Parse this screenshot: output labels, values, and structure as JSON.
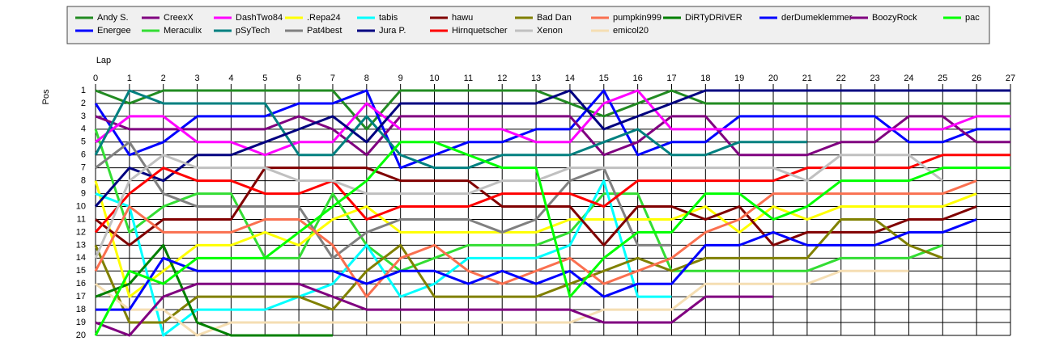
{
  "chart_data": {
    "type": "line",
    "x_label": "Lap",
    "y_label": "Pos",
    "x": [
      0,
      1,
      2,
      3,
      4,
      5,
      6,
      7,
      8,
      9,
      10,
      11,
      12,
      13,
      14,
      15,
      16,
      17,
      18,
      19,
      20,
      21,
      22,
      23,
      24,
      25,
      26,
      27
    ],
    "xlim": [
      0,
      27
    ],
    "xticks": [
      0,
      1,
      2,
      3,
      4,
      5,
      6,
      7,
      8,
      9,
      10,
      11,
      12,
      13,
      14,
      15,
      16,
      17,
      18,
      19,
      20,
      21,
      22,
      23,
      24,
      25,
      26,
      27
    ],
    "ylim": [
      20,
      1
    ],
    "yticks": [
      1,
      2,
      3,
      4,
      5,
      6,
      7,
      8,
      9,
      10,
      11,
      12,
      13,
      14,
      15,
      16,
      17,
      18,
      19,
      20
    ],
    "grid": true,
    "legend": "top",
    "series": [
      {
        "name": "Andy S.",
        "color": "#228b22",
        "values": [
          1,
          2,
          1,
          1,
          1,
          1,
          1,
          1,
          4,
          1,
          1,
          1,
          1,
          1,
          2,
          3,
          2,
          1,
          2,
          2,
          2,
          2,
          2,
          2,
          2,
          2,
          2,
          2
        ]
      },
      {
        "name": "Energee",
        "color": "#0000ff",
        "values": [
          2,
          6,
          5,
          3,
          3,
          3,
          2,
          2,
          1,
          7,
          6,
          5,
          5,
          4,
          4,
          1,
          6,
          5,
          5,
          3,
          3,
          3,
          3,
          3,
          5,
          5,
          4,
          4
        ]
      },
      {
        "name": "CreexX",
        "color": "#800080",
        "values": [
          3,
          4,
          4,
          4,
          4,
          4,
          3,
          4,
          6,
          3,
          3,
          3,
          3,
          3,
          3,
          6,
          5,
          3,
          3,
          6,
          6,
          6,
          5,
          5,
          3,
          3,
          5,
          5
        ]
      },
      {
        "name": "Meraculix",
        "color": "#33dd33",
        "values": [
          4,
          12,
          10,
          9,
          9,
          14,
          14,
          9,
          13,
          15,
          14,
          13,
          13,
          13,
          12,
          9,
          9,
          15,
          15,
          15,
          15,
          15,
          14,
          14,
          14,
          13,
          null,
          null
        ]
      },
      {
        "name": "DashTwo84",
        "color": "#ff00ff",
        "values": [
          5,
          3,
          3,
          5,
          5,
          6,
          5,
          5,
          2,
          4,
          4,
          4,
          4,
          5,
          5,
          2,
          1,
          4,
          4,
          4,
          4,
          4,
          4,
          4,
          4,
          4,
          3,
          3
        ]
      },
      {
        "name": "pSyTech",
        "color": "#008080",
        "values": [
          6,
          1,
          2,
          2,
          2,
          2,
          6,
          6,
          3,
          6,
          7,
          7,
          6,
          6,
          6,
          5,
          4,
          6,
          6,
          5,
          5,
          5,
          null,
          null,
          null,
          null,
          null,
          null
        ]
      },
      {
        "name": ".Repa24",
        "color": "#ffff00",
        "values": [
          8,
          17,
          15,
          13,
          13,
          12,
          13,
          11,
          10,
          12,
          12,
          12,
          12,
          12,
          11,
          11,
          11,
          11,
          10,
          12,
          10,
          11,
          10,
          10,
          10,
          10,
          9,
          null
        ]
      },
      {
        "name": "Pat4best",
        "color": "#808080",
        "values": [
          7,
          5,
          9,
          10,
          10,
          10,
          10,
          14,
          12,
          11,
          11,
          11,
          12,
          11,
          8,
          7,
          13,
          13,
          null,
          null,
          null,
          null,
          null,
          null,
          null,
          null,
          null,
          null
        ]
      },
      {
        "name": "tabis",
        "color": "#00ffff",
        "values": [
          9,
          10,
          20,
          18,
          18,
          18,
          17,
          16,
          13,
          17,
          16,
          14,
          14,
          14,
          13,
          8,
          17,
          17,
          null,
          null,
          null,
          null,
          null,
          null,
          null,
          null,
          null,
          null
        ]
      },
      {
        "name": "Jura P.",
        "color": "#000080",
        "values": [
          10,
          7,
          8,
          6,
          6,
          5,
          4,
          3,
          5,
          2,
          2,
          2,
          2,
          2,
          1,
          4,
          3,
          2,
          1,
          1,
          1,
          1,
          1,
          1,
          1,
          1,
          1,
          1
        ]
      },
      {
        "name": "hawu",
        "color": "#800000",
        "values": [
          11,
          13,
          11,
          11,
          11,
          7,
          7,
          7,
          7,
          8,
          8,
          8,
          10,
          10,
          10,
          13,
          10,
          10,
          11,
          10,
          13,
          12,
          12,
          12,
          11,
          11,
          10,
          null
        ]
      },
      {
        "name": "Hirnquetscher",
        "color": "#ff0000",
        "values": [
          12,
          9,
          7,
          8,
          8,
          9,
          9,
          8,
          11,
          10,
          10,
          10,
          9,
          9,
          9,
          10,
          8,
          8,
          8,
          8,
          8,
          7,
          7,
          7,
          7,
          6,
          6,
          6
        ]
      },
      {
        "name": "Bad Dan",
        "color": "#808000",
        "values": [
          13,
          19,
          19,
          17,
          17,
          17,
          17,
          18,
          15,
          13,
          17,
          17,
          17,
          17,
          16,
          15,
          14,
          15,
          14,
          14,
          14,
          14,
          11,
          11,
          13,
          14,
          null,
          null
        ]
      },
      {
        "name": "Xenon",
        "color": "#c0c0c0",
        "values": [
          14,
          8,
          6,
          7,
          7,
          7,
          8,
          8,
          9,
          9,
          9,
          9,
          8,
          8,
          7,
          7,
          7,
          7,
          7,
          7,
          7,
          8,
          6,
          6,
          6,
          8,
          null,
          null
        ]
      },
      {
        "name": "pumpkin999",
        "color": "#fa7050",
        "values": [
          15,
          10,
          12,
          12,
          12,
          11,
          11,
          13,
          17,
          14,
          13,
          15,
          16,
          15,
          14,
          16,
          15,
          14,
          12,
          11,
          9,
          9,
          9,
          9,
          9,
          9,
          8,
          null
        ]
      },
      {
        "name": "emicol20",
        "color": "#f5deb3",
        "values": [
          16,
          18,
          18,
          20,
          19,
          19,
          19,
          19,
          19,
          19,
          19,
          19,
          19,
          19,
          19,
          18,
          18,
          18,
          16,
          16,
          16,
          16,
          15,
          15,
          15,
          null,
          null,
          null
        ]
      },
      {
        "name": "DiRTyDRiVER",
        "color": "#008000",
        "values": [
          17,
          16,
          13,
          19,
          20,
          20,
          20,
          20,
          null,
          null,
          null,
          null,
          null,
          null,
          null,
          null,
          null,
          null,
          null,
          null,
          null,
          null,
          null,
          null,
          null,
          null,
          null,
          null
        ]
      },
      {
        "name": "derDumeklemmer",
        "color": "#0000ff",
        "values": [
          18,
          18,
          14,
          15,
          15,
          15,
          15,
          15,
          16,
          15,
          15,
          16,
          15,
          16,
          15,
          17,
          16,
          16,
          13,
          13,
          12,
          13,
          13,
          13,
          12,
          12,
          11,
          null
        ]
      },
      {
        "name": "BoozyRock",
        "color": "#800080",
        "values": [
          19,
          20,
          17,
          16,
          16,
          16,
          16,
          17,
          18,
          18,
          18,
          18,
          18,
          18,
          18,
          19,
          19,
          19,
          17,
          17,
          17,
          null,
          null,
          null,
          null,
          null,
          null,
          null
        ]
      },
      {
        "name": "pac",
        "color": "#00ff00",
        "values": [
          20,
          15,
          16,
          14,
          14,
          14,
          12,
          10,
          8,
          5,
          5,
          6,
          7,
          7,
          17,
          14,
          12,
          12,
          9,
          9,
          11,
          10,
          8,
          8,
          8,
          7,
          7,
          7
        ]
      }
    ]
  }
}
